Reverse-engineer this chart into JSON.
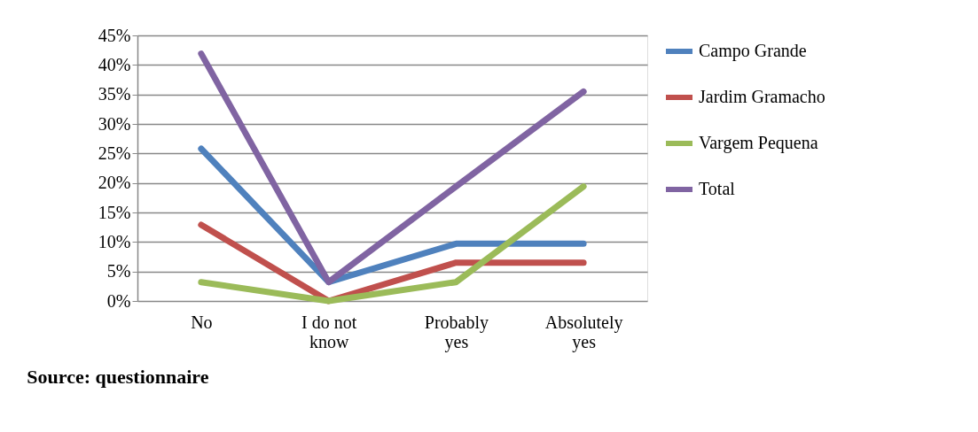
{
  "chart_data": {
    "type": "line",
    "categories": [
      "No",
      "I do not know",
      "Probably yes",
      "Absolutely yes"
    ],
    "series": [
      {
        "name": "Campo Grande",
        "color": "#4f81bd",
        "values": [
          25.8,
          3.2,
          9.7,
          9.7
        ]
      },
      {
        "name": "Jardim Gramacho",
        "color": "#c0504d",
        "values": [
          12.9,
          0,
          6.5,
          6.5
        ]
      },
      {
        "name": "Vargem Pequena",
        "color": "#9bbb59",
        "values": [
          3.2,
          0,
          3.2,
          19.4
        ]
      },
      {
        "name": "Total",
        "color": "#8064a2",
        "values": [
          41.9,
          3.2,
          19.4,
          35.5
        ]
      }
    ],
    "ylim": [
      0,
      45
    ],
    "yticks": [
      {
        "value": 0,
        "label": "0%"
      },
      {
        "value": 5,
        "label": "5%"
      },
      {
        "value": 10,
        "label": "10%"
      },
      {
        "value": 15,
        "label": "15%"
      },
      {
        "value": 20,
        "label": "20%"
      },
      {
        "value": 25,
        "label": "25%"
      },
      {
        "value": 30,
        "label": "30%"
      },
      {
        "value": 35,
        "label": "35%"
      },
      {
        "value": 40,
        "label": "40%"
      },
      {
        "value": 45,
        "label": "45%"
      }
    ],
    "grid": "y",
    "legend": "right",
    "marker": "none",
    "line_style": "solid",
    "annotations": [
      "Source: questionnaire"
    ]
  }
}
